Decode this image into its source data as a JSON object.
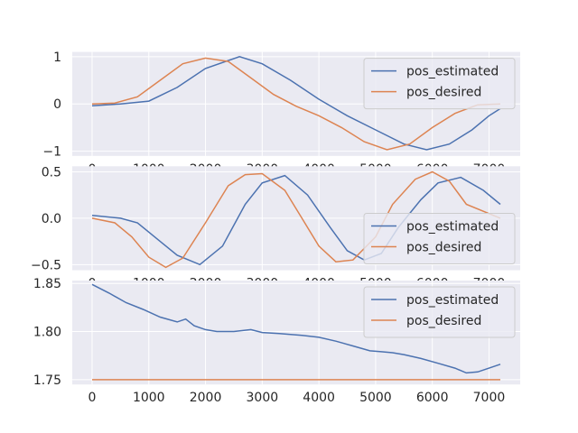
{
  "colors": {
    "pos_estimated": "#4c72b0",
    "pos_desired": "#dd8452",
    "axes_bg": "#eaeaf2",
    "grid": "#ffffff"
  },
  "chart_data": [
    {
      "type": "line",
      "xlim": [
        -350,
        7550
      ],
      "ylim": [
        -1.1,
        1.1
      ],
      "x_ticks": [
        0,
        1000,
        2000,
        3000,
        4000,
        5000,
        6000,
        7000
      ],
      "y_ticks": [
        1,
        0,
        -1
      ],
      "y_tick_labels": [
        "1",
        "0",
        "−1"
      ],
      "legend": "upper right",
      "series": [
        {
          "name": "pos_estimated",
          "x": [
            0,
            500,
            1000,
            1500,
            2000,
            2600,
            3000,
            3500,
            4000,
            4500,
            5000,
            5500,
            5900,
            6300,
            6700,
            7000,
            7200
          ],
          "y": [
            -0.04,
            0.0,
            0.06,
            0.35,
            0.75,
            1.0,
            0.85,
            0.5,
            0.1,
            -0.25,
            -0.55,
            -0.85,
            -0.97,
            -0.85,
            -0.55,
            -0.25,
            -0.1
          ]
        },
        {
          "name": "pos_desired",
          "x": [
            0,
            400,
            800,
            1200,
            1600,
            2000,
            2400,
            2800,
            3200,
            3600,
            4000,
            4400,
            4800,
            5200,
            5600,
            6000,
            6400,
            6800,
            7200
          ],
          "y": [
            0.0,
            0.02,
            0.15,
            0.5,
            0.85,
            0.97,
            0.9,
            0.55,
            0.2,
            -0.05,
            -0.25,
            -0.5,
            -0.8,
            -0.97,
            -0.85,
            -0.5,
            -0.2,
            -0.02,
            0.0
          ]
        }
      ]
    },
    {
      "type": "line",
      "xlim": [
        -350,
        7550
      ],
      "ylim": [
        -0.56,
        0.56
      ],
      "x_ticks": [
        0,
        1000,
        2000,
        3000,
        4000,
        5000,
        6000,
        7000
      ],
      "y_ticks": [
        0.5,
        0.0,
        -0.5
      ],
      "y_tick_labels": [
        "0.5",
        "0.0",
        "−0.5"
      ],
      "legend": "lower right",
      "series": [
        {
          "name": "pos_estimated",
          "x": [
            0,
            500,
            800,
            1200,
            1500,
            1900,
            2300,
            2700,
            3000,
            3400,
            3800,
            4200,
            4500,
            4800,
            5100,
            5400,
            5800,
            6100,
            6500,
            6900,
            7200
          ],
          "y": [
            0.03,
            0.0,
            -0.05,
            -0.25,
            -0.4,
            -0.5,
            -0.3,
            0.15,
            0.38,
            0.46,
            0.25,
            -0.1,
            -0.35,
            -0.45,
            -0.38,
            -0.1,
            0.2,
            0.38,
            0.44,
            0.3,
            0.15
          ]
        },
        {
          "name": "pos_desired",
          "x": [
            0,
            400,
            700,
            1000,
            1300,
            1600,
            2000,
            2400,
            2700,
            3000,
            3400,
            3700,
            4000,
            4300,
            4600,
            5000,
            5300,
            5700,
            6000,
            6300,
            6600,
            7200
          ],
          "y": [
            0.0,
            -0.05,
            -0.2,
            -0.42,
            -0.53,
            -0.43,
            -0.05,
            0.35,
            0.47,
            0.48,
            0.3,
            0.0,
            -0.3,
            -0.47,
            -0.45,
            -0.2,
            0.15,
            0.42,
            0.5,
            0.4,
            0.15,
            0.0
          ]
        }
      ]
    },
    {
      "type": "line",
      "xlim": [
        -350,
        7550
      ],
      "ylim": [
        1.745,
        1.853
      ],
      "x_ticks": [
        0,
        1000,
        2000,
        3000,
        4000,
        5000,
        6000,
        7000
      ],
      "x_tick_labels": [
        "0",
        "1000",
        "2000",
        "3000",
        "4000",
        "5000",
        "6000",
        "7000"
      ],
      "y_ticks": [
        1.85,
        1.8,
        1.75
      ],
      "y_tick_labels": [
        "1.85",
        "1.80",
        "1.75"
      ],
      "legend": "upper right",
      "series": [
        {
          "name": "pos_estimated",
          "x": [
            0,
            300,
            600,
            900,
            1200,
            1500,
            1650,
            1800,
            2000,
            2200,
            2500,
            2800,
            3000,
            3300,
            3500,
            3700,
            4000,
            4300,
            4600,
            4900,
            5100,
            5300,
            5500,
            5800,
            6100,
            6400,
            6600,
            6800,
            7000,
            7200
          ],
          "y": [
            1.849,
            1.84,
            1.83,
            1.823,
            1.815,
            1.81,
            1.813,
            1.806,
            1.802,
            1.8,
            1.8,
            1.802,
            1.799,
            1.798,
            1.797,
            1.796,
            1.794,
            1.79,
            1.785,
            1.78,
            1.779,
            1.778,
            1.776,
            1.772,
            1.767,
            1.762,
            1.757,
            1.758,
            1.762,
            1.766
          ]
        },
        {
          "name": "pos_desired",
          "x": [
            0,
            7200
          ],
          "y": [
            1.75,
            1.75
          ]
        }
      ]
    }
  ]
}
